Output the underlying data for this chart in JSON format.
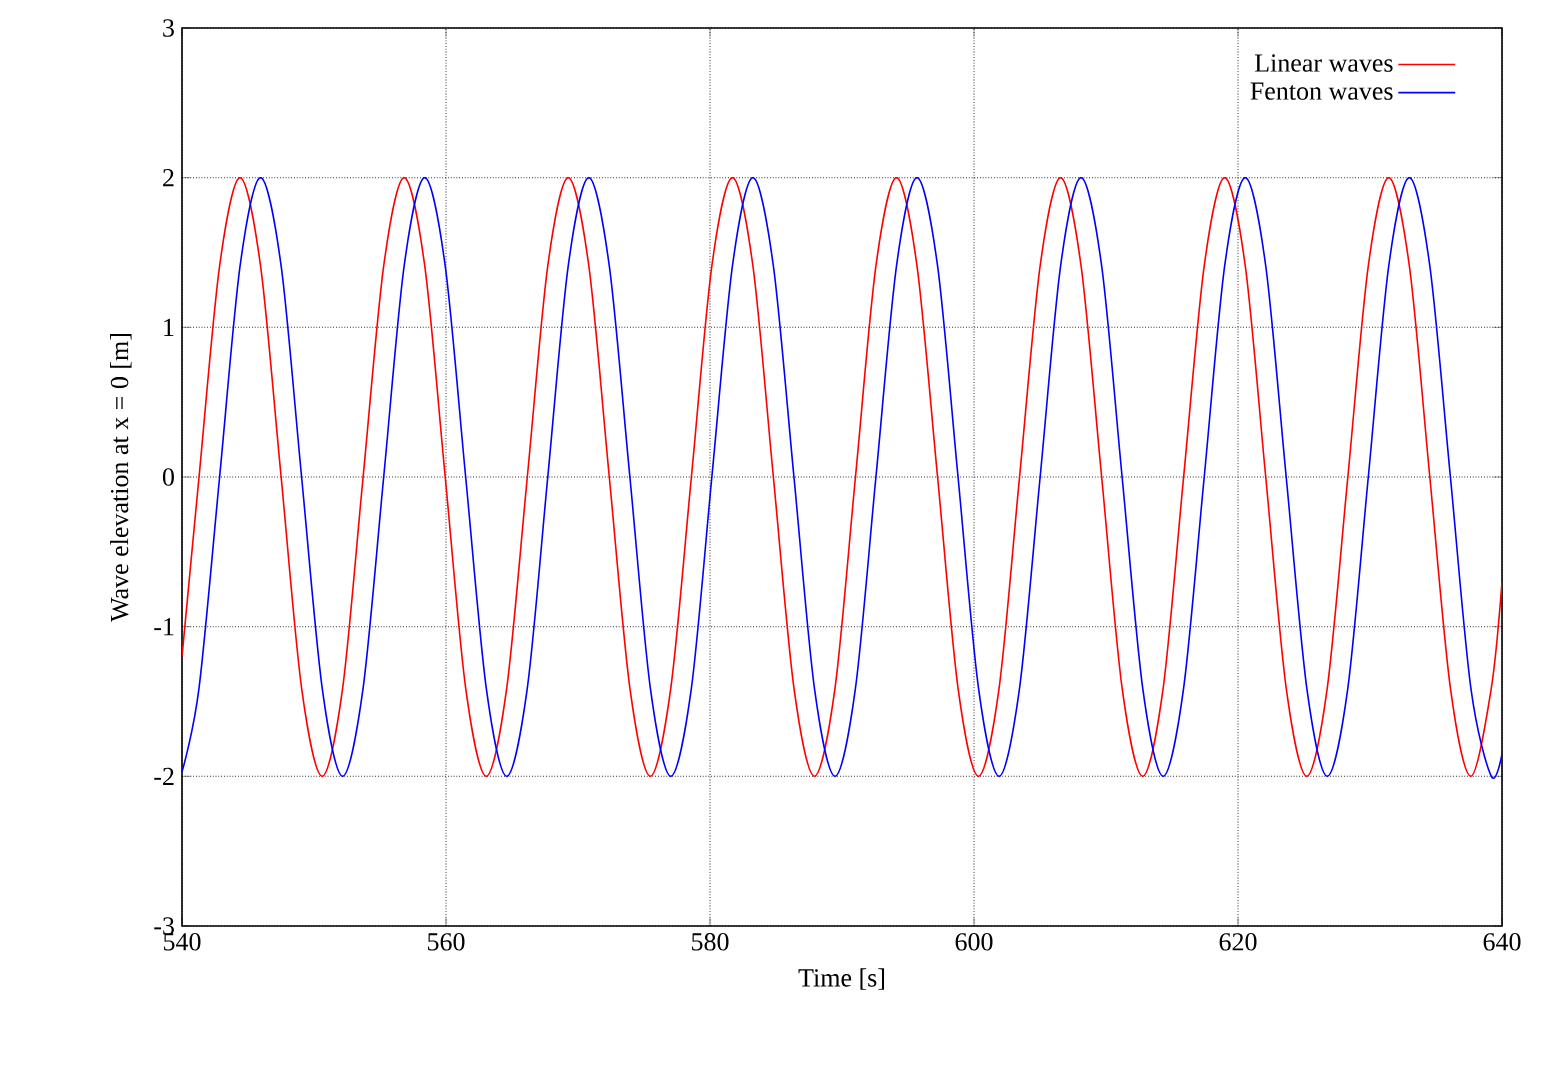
{
  "chart_data": {
    "type": "line",
    "xlabel": "Time [s]",
    "ylabel": "Wave elevation at x = 0 [m]",
    "x": [
      540,
      541.29,
      542.85,
      544.4,
      545.95,
      547.51,
      549.06,
      550.62,
      552.17,
      553.72,
      555.28,
      556.83,
      558.39,
      559.94,
      561.49,
      563.05,
      564.6,
      566.16,
      567.71,
      569.26,
      570.82,
      572.37,
      573.93,
      575.48,
      577.03,
      578.59,
      580.14,
      581.7,
      583.25,
      584.8,
      586.36,
      587.91,
      589.47,
      591.02,
      592.57,
      594.13,
      595.68,
      597.24,
      598.79,
      600.34,
      601.9,
      603.45,
      605.01,
      606.56,
      608.11,
      609.67,
      611.22,
      612.78,
      614.33,
      615.88,
      617.44,
      618.99,
      620.55,
      622.1,
      623.65,
      625.21,
      626.76,
      628.32,
      629.87,
      631.42,
      632.98,
      634.53,
      636.09,
      637.64,
      639.19,
      640
    ],
    "series": [
      {
        "name": "Linear waves",
        "color": "#ff0000",
        "values": [
          -1.2,
          0,
          1.41,
          2,
          1.41,
          0,
          -1.41,
          -2,
          -1.41,
          0,
          1.41,
          2,
          1.41,
          0,
          -1.41,
          -2,
          -1.41,
          0,
          1.41,
          2,
          1.41,
          0,
          -1.41,
          -2,
          -1.41,
          0,
          1.41,
          2,
          1.41,
          0,
          -1.41,
          -2,
          -1.41,
          0,
          1.41,
          2,
          1.41,
          0,
          -1.41,
          -2,
          -1.41,
          0,
          1.41,
          2,
          1.41,
          0,
          -1.41,
          -2,
          -1.41,
          0,
          1.41,
          2,
          1.41,
          0,
          -1.41,
          -2,
          -1.41,
          0,
          1.41,
          2,
          1.41,
          0,
          -1.41,
          -2,
          -1.41,
          -0.7
        ]
      },
      {
        "name": "Fenton waves",
        "color": "#0000ff",
        "values": [
          -1.97,
          -1.41,
          0,
          1.41,
          2,
          1.41,
          0,
          -1.41,
          -2,
          -1.41,
          0,
          1.41,
          2,
          1.41,
          0,
          -1.41,
          -2,
          -1.41,
          0,
          1.41,
          2,
          1.41,
          0,
          -1.41,
          -2,
          -1.41,
          0,
          1.41,
          2,
          1.41,
          0,
          -1.41,
          -2,
          -1.41,
          0,
          1.41,
          2,
          1.41,
          0,
          -1.41,
          -2,
          -1.41,
          0,
          1.41,
          2,
          1.41,
          0,
          -1.41,
          -2,
          -1.41,
          0,
          1.41,
          2,
          1.41,
          0,
          -1.41,
          -2,
          -1.41,
          0,
          1.41,
          2,
          1.41,
          0,
          -1.41,
          -2,
          -1.85
        ]
      }
    ],
    "xlim": [
      540,
      640
    ],
    "ylim": [
      -3,
      3
    ],
    "xticks": [
      540,
      560,
      580,
      600,
      620,
      640
    ],
    "yticks": [
      -3,
      -2,
      -1,
      0,
      1,
      2,
      3
    ],
    "grid": true,
    "legend": "top right",
    "marker": "none",
    "line_style": "solid"
  }
}
